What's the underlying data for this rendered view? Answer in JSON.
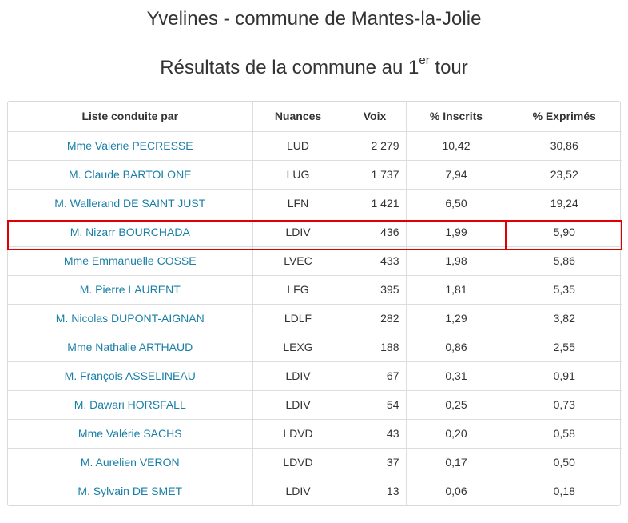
{
  "header": {
    "title": "Yvelines - commune de Mantes-la-Jolie",
    "subtitle_main": "Résultats de la commune au 1",
    "subtitle_sup": "er",
    "subtitle_end": " tour"
  },
  "table": {
    "columns": [
      "Liste conduite par",
      "Nuances",
      "Voix",
      "% Inscrits",
      "% Exprimés"
    ],
    "rows": [
      {
        "name": "Mme Valérie PECRESSE",
        "nuance": "LUD",
        "voix": "2 279",
        "inscrits": "10,42",
        "exprimes": "30,86"
      },
      {
        "name": "M. Claude BARTOLONE",
        "nuance": "LUG",
        "voix": "1 737",
        "inscrits": "7,94",
        "exprimes": "23,52"
      },
      {
        "name": "M. Wallerand DE SAINT JUST",
        "nuance": "LFN",
        "voix": "1 421",
        "inscrits": "6,50",
        "exprimes": "19,24"
      },
      {
        "name": "M. Nizarr BOURCHADA",
        "nuance": "LDIV",
        "voix": "436",
        "inscrits": "1,99",
        "exprimes": "5,90"
      },
      {
        "name": "Mme Emmanuelle COSSE",
        "nuance": "LVEC",
        "voix": "433",
        "inscrits": "1,98",
        "exprimes": "5,86"
      },
      {
        "name": "M. Pierre LAURENT",
        "nuance": "LFG",
        "voix": "395",
        "inscrits": "1,81",
        "exprimes": "5,35"
      },
      {
        "name": "M. Nicolas DUPONT-AIGNAN",
        "nuance": "LDLF",
        "voix": "282",
        "inscrits": "1,29",
        "exprimes": "3,82"
      },
      {
        "name": "Mme Nathalie ARTHAUD",
        "nuance": "LEXG",
        "voix": "188",
        "inscrits": "0,86",
        "exprimes": "2,55"
      },
      {
        "name": "M. François ASSELINEAU",
        "nuance": "LDIV",
        "voix": "67",
        "inscrits": "0,31",
        "exprimes": "0,91"
      },
      {
        "name": "M. Dawari HORSFALL",
        "nuance": "LDIV",
        "voix": "54",
        "inscrits": "0,25",
        "exprimes": "0,73"
      },
      {
        "name": "Mme Valérie SACHS",
        "nuance": "LDVD",
        "voix": "43",
        "inscrits": "0,20",
        "exprimes": "0,58"
      },
      {
        "name": "M. Aurelien VERON",
        "nuance": "LDVD",
        "voix": "37",
        "inscrits": "0,17",
        "exprimes": "0,50"
      },
      {
        "name": "M. Sylvain DE SMET",
        "nuance": "LDIV",
        "voix": "13",
        "inscrits": "0,06",
        "exprimes": "0,18"
      }
    ]
  },
  "colors": {
    "link": "#1a7fa6",
    "highlight": "#e00000",
    "text": "#333333"
  }
}
